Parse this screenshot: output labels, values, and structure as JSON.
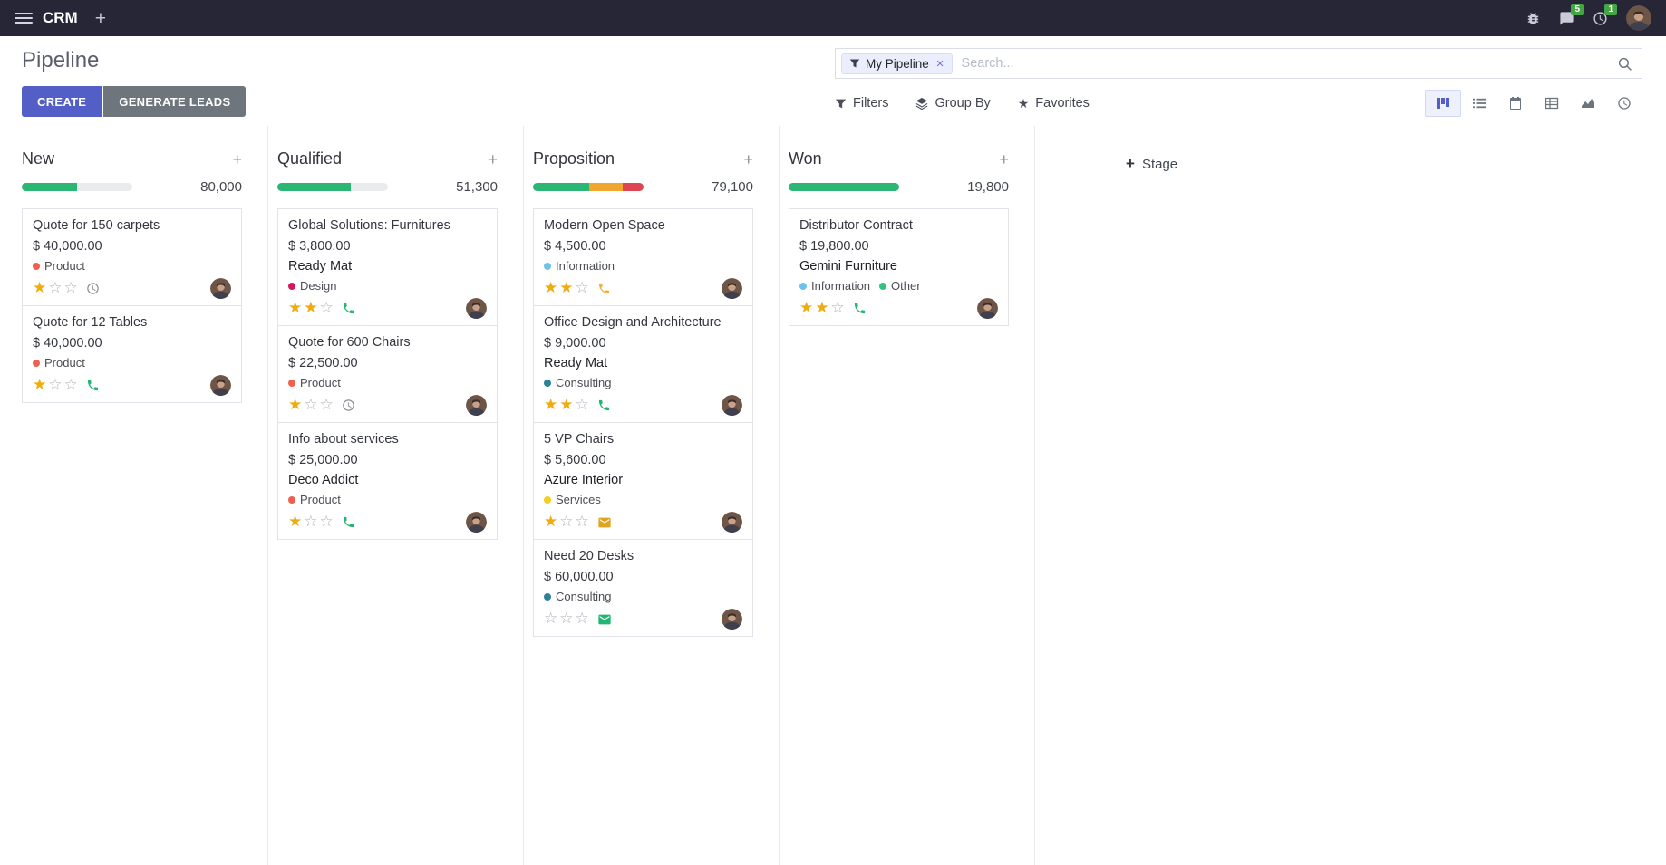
{
  "colors": {
    "accent": "#535fc6",
    "success": "#2bb673",
    "warning": "#f0a62f",
    "danger": "#df4453",
    "topbar_bg": "#262636",
    "badge_green": "#44a544",
    "star_gold": "#f0ac0f"
  },
  "topbar": {
    "app_name": "CRM",
    "messages_badge": "5",
    "activities_badge": "1"
  },
  "control_panel": {
    "title": "Pipeline",
    "create_label": "CREATE",
    "generate_leads_label": "GENERATE LEADS",
    "filters_label": "Filters",
    "group_by_label": "Group By",
    "favorites_label": "Favorites",
    "search": {
      "facet_label": "My Pipeline",
      "placeholder": "Search...",
      "clear_label": "×"
    },
    "view_switcher": {
      "active_view": "kanban",
      "views": [
        "kanban",
        "list",
        "calendar",
        "pivot",
        "graph",
        "activity"
      ]
    }
  },
  "board": {
    "add_stage_label": "Stage",
    "columns": [
      {
        "title": "New",
        "total": "80,000",
        "progress": [
          {
            "color": "#2bb673",
            "pct": 50
          }
        ],
        "cards": [
          {
            "title": "Quote for 150 carpets",
            "amount": "$ 40,000.00",
            "partner": "",
            "tags": [
              {
                "label": "Product",
                "color": "#f06050"
              }
            ],
            "stars": 1,
            "activity": {
              "type": "clock",
              "color": "#8b8d94"
            }
          },
          {
            "title": "Quote for 12 Tables",
            "amount": "$ 40,000.00",
            "partner": "",
            "tags": [
              {
                "label": "Product",
                "color": "#f06050"
              }
            ],
            "stars": 1,
            "activity": {
              "type": "phone",
              "color": "#22b573"
            }
          }
        ]
      },
      {
        "title": "Qualified",
        "total": "51,300",
        "progress": [
          {
            "color": "#2bb673",
            "pct": 66
          }
        ],
        "cards": [
          {
            "title": "Global Solutions: Furnitures",
            "amount": "$ 3,800.00",
            "partner": "Ready Mat",
            "tags": [
              {
                "label": "Design",
                "color": "#d6145f"
              }
            ],
            "stars": 2,
            "activity": {
              "type": "phone",
              "color": "#22b573"
            }
          },
          {
            "title": "Quote for 600 Chairs",
            "amount": "$ 22,500.00",
            "partner": "",
            "tags": [
              {
                "label": "Product",
                "color": "#f06050"
              }
            ],
            "stars": 1,
            "activity": {
              "type": "clock",
              "color": "#8b8d94"
            }
          },
          {
            "title": "Info about services",
            "amount": "$ 25,000.00",
            "partner": "Deco Addict",
            "tags": [
              {
                "label": "Product",
                "color": "#f06050"
              }
            ],
            "stars": 1,
            "activity": {
              "type": "phone",
              "color": "#22b573"
            }
          }
        ]
      },
      {
        "title": "Proposition",
        "total": "79,100",
        "progress": [
          {
            "color": "#2bb673",
            "pct": 51
          },
          {
            "color": "#f0a62f",
            "pct": 30
          },
          {
            "color": "#df4453",
            "pct": 19
          }
        ],
        "cards": [
          {
            "title": "Modern Open Space",
            "amount": "$ 4,500.00",
            "partner": "",
            "tags": [
              {
                "label": "Information",
                "color": "#6cc1ed"
              }
            ],
            "stars": 2,
            "activity": {
              "type": "phone",
              "color": "#f0b13c"
            }
          },
          {
            "title": "Office Design and Architecture",
            "amount": "$ 9,000.00",
            "partner": "Ready Mat",
            "tags": [
              {
                "label": "Consulting",
                "color": "#2c8397"
              }
            ],
            "stars": 2,
            "activity": {
              "type": "phone",
              "color": "#22b573"
            }
          },
          {
            "title": "5 VP Chairs",
            "amount": "$ 5,600.00",
            "partner": "Azure Interior",
            "tags": [
              {
                "label": "Services",
                "color": "#f7cd1f"
              }
            ],
            "stars": 1,
            "activity": {
              "type": "envelope",
              "color": "#e2a321"
            }
          },
          {
            "title": "Need 20 Desks",
            "amount": "$ 60,000.00",
            "partner": "",
            "tags": [
              {
                "label": "Consulting",
                "color": "#2c8397"
              }
            ],
            "stars": 0,
            "activity": {
              "type": "envelope",
              "color": "#22b573"
            }
          }
        ]
      },
      {
        "title": "Won",
        "total": "19,800",
        "progress": [
          {
            "color": "#2bb673",
            "pct": 100
          }
        ],
        "cards": [
          {
            "title": "Distributor Contract",
            "amount": "$ 19,800.00",
            "partner": "Gemini Furniture",
            "tags": [
              {
                "label": "Information",
                "color": "#6cc1ed"
              },
              {
                "label": "Other",
                "color": "#30c381"
              }
            ],
            "stars": 2,
            "activity": {
              "type": "phone",
              "color": "#22b573"
            }
          }
        ]
      }
    ]
  }
}
